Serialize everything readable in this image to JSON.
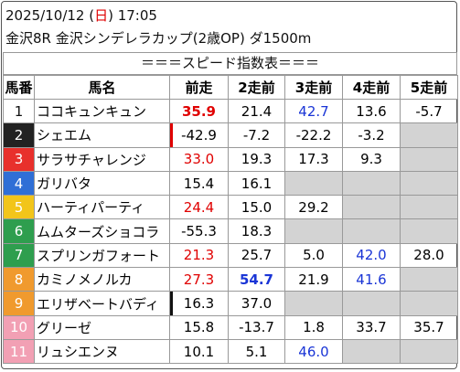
{
  "header": {
    "parts": [
      "2025/10/12 (",
      "日",
      ") 17:05"
    ],
    "part_colors": [
      "#111",
      "#e00000",
      "#111"
    ],
    "race": "金沢8R 金沢シンデレラカップ(2歳OP) ダ1500m",
    "title": "＝＝＝スピード指数表＝＝＝"
  },
  "table": {
    "columns": [
      "馬番",
      "馬名",
      "前走",
      "2走前",
      "3走前",
      "4走前",
      "5走前"
    ],
    "rows": [
      {
        "no": "1",
        "frame": "#ffffff",
        "frame_text": "#111",
        "name": "ココキュンキュン",
        "scores": [
          {
            "text": "35.9",
            "color": "#e00000",
            "bold": true
          },
          "21.4",
          {
            "text": "42.7",
            "color": "#1a35d6"
          },
          "13.6",
          "-5.7"
        ]
      },
      {
        "no": "2",
        "frame": "#222222",
        "frame_text": "#fff",
        "name": "シェエム",
        "bar": "#e00000",
        "scores": [
          "-42.9",
          "-7.2",
          "-22.2",
          "-3.2",
          null
        ]
      },
      {
        "no": "3",
        "frame": "#e8302c",
        "frame_text": "#fff",
        "name": "サラサチャレンジ",
        "scores": [
          {
            "text": "33.0",
            "color": "#e00000"
          },
          "19.3",
          "17.3",
          "9.3",
          null
        ]
      },
      {
        "no": "4",
        "frame": "#2f6fd6",
        "frame_text": "#fff",
        "name": "ガリバタ",
        "scores": [
          "15.4",
          "16.1",
          null,
          null,
          null
        ]
      },
      {
        "no": "5",
        "frame": "#f2c51a",
        "frame_text": "#fff",
        "name": "ハーティパーティ",
        "scores": [
          {
            "text": "24.4",
            "color": "#e00000"
          },
          "15.0",
          "29.2",
          null,
          null
        ]
      },
      {
        "no": "6",
        "frame": "#2e9e4e",
        "frame_text": "#fff",
        "name": "ムムターズショコラ",
        "scores": [
          "-55.3",
          "18.3",
          null,
          null,
          null
        ]
      },
      {
        "no": "7",
        "frame": "#2e9e4e",
        "frame_text": "#fff",
        "name": "スプリンガフォート",
        "scores": [
          {
            "text": "21.3",
            "color": "#e00000"
          },
          "25.7",
          "5.0",
          {
            "text": "42.0",
            "color": "#1a35d6"
          },
          "28.0"
        ]
      },
      {
        "no": "8",
        "frame": "#f09a2e",
        "frame_text": "#fff",
        "name": "カミノメノルカ",
        "scores": [
          {
            "text": "27.3",
            "color": "#e00000"
          },
          {
            "text": "54.7",
            "color": "#1a35d6",
            "bold": true
          },
          "21.9",
          {
            "text": "41.6",
            "color": "#1a35d6"
          },
          null
        ]
      },
      {
        "no": "9",
        "frame": "#f09a2e",
        "frame_text": "#fff",
        "name": "エリザベートバディ",
        "bar": "#111111",
        "scores": [
          "16.3",
          "37.0",
          null,
          null,
          null
        ]
      },
      {
        "no": "10",
        "frame": "#f2a0b4",
        "frame_text": "#fff",
        "name": "グリーゼ",
        "scores": [
          "15.8",
          "-13.7",
          "1.8",
          "33.7",
          "35.7"
        ]
      },
      {
        "no": "11",
        "frame": "#f2a0b4",
        "frame_text": "#fff",
        "name": "リュシエンヌ",
        "scores": [
          "10.1",
          "5.1",
          {
            "text": "46.0",
            "color": "#1a35d6"
          },
          null,
          null
        ]
      }
    ]
  }
}
